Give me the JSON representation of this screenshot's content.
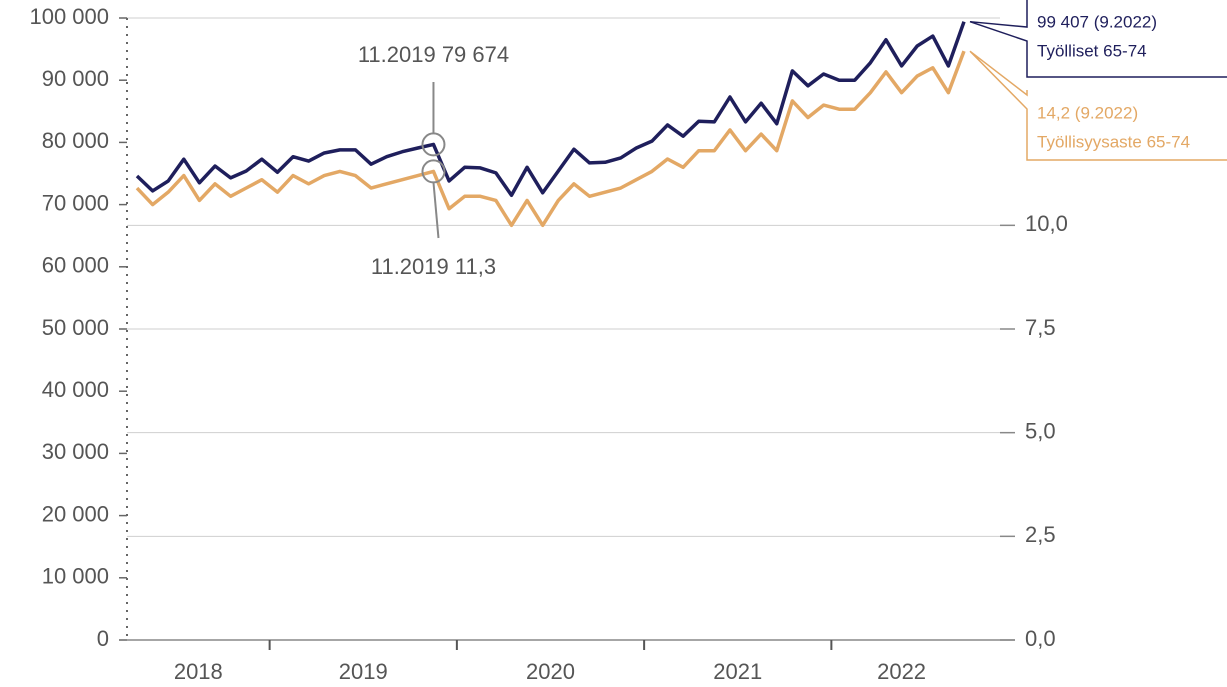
{
  "chart_data": {
    "type": "line",
    "x": [
      "4.2018",
      "5.2018",
      "6.2018",
      "7.2018",
      "8.2018",
      "9.2018",
      "10.2018",
      "11.2018",
      "12.2018",
      "1.2019",
      "2.2019",
      "3.2019",
      "4.2019",
      "5.2019",
      "6.2019",
      "7.2019",
      "8.2019",
      "9.2019",
      "10.2019",
      "11.2019",
      "12.2019",
      "1.2020",
      "2.2020",
      "3.2020",
      "4.2020",
      "5.2020",
      "6.2020",
      "7.2020",
      "8.2020",
      "9.2020",
      "10.2020",
      "11.2020",
      "12.2020",
      "1.2021",
      "2.2021",
      "3.2021",
      "4.2021",
      "5.2021",
      "6.2021",
      "7.2021",
      "8.2021",
      "9.2021",
      "10.2021",
      "11.2021",
      "12.2021",
      "1.2022",
      "2.2022",
      "3.2022",
      "4.2022",
      "5.2022",
      "6.2022",
      "7.2022",
      "8.2022",
      "9.2022"
    ],
    "years": [
      "2018",
      "2019",
      "2020",
      "2021",
      "2022"
    ],
    "series": [
      {
        "name": "Työlliset 65-74",
        "color": "#1f1f5c",
        "axis": "y",
        "end_label": "99 407 (9.2022)",
        "annotation": {
          "text": "11.2019 79 674",
          "x": "11.2019"
        },
        "values": [
          74600,
          72200,
          73800,
          77300,
          73500,
          76200,
          74300,
          75400,
          77300,
          75200,
          77700,
          77000,
          78300,
          78800,
          78800,
          76500,
          77700,
          78500,
          79100,
          79674,
          73800,
          76000,
          75900,
          75100,
          71500,
          76000,
          71900,
          75400,
          78900,
          76700,
          76800,
          77500,
          79100,
          80200,
          82800,
          81000,
          83400,
          83300,
          87300,
          83300,
          86300,
          83000,
          91500,
          89100,
          91000,
          90000,
          90000,
          92800,
          96500,
          92300,
          95500,
          97100,
          92300,
          99407
        ]
      },
      {
        "name": "Työllisyysaste 65-74",
        "color": "#e3a865",
        "axis": "y2",
        "end_label": "14,2 (9.2022)",
        "annotation": {
          "text": "11.2019 11,3",
          "x": "11.2019"
        },
        "values": [
          10.9,
          10.5,
          10.8,
          11.2,
          10.6,
          11.0,
          10.7,
          10.9,
          11.1,
          10.8,
          11.2,
          11.0,
          11.2,
          11.3,
          11.2,
          10.9,
          11.0,
          11.1,
          11.2,
          11.3,
          10.4,
          10.7,
          10.7,
          10.6,
          10.0,
          10.6,
          10.0,
          10.6,
          11.0,
          10.7,
          10.8,
          10.9,
          11.1,
          11.3,
          11.6,
          11.4,
          11.8,
          11.8,
          12.3,
          11.8,
          12.2,
          11.8,
          13.0,
          12.6,
          12.9,
          12.8,
          12.8,
          13.2,
          13.7,
          13.2,
          13.6,
          13.8,
          13.2,
          14.2
        ]
      }
    ],
    "ylim": [
      0,
      100000
    ],
    "yticks": [
      0,
      {
        "value": 10000,
        "label": "10 000"
      },
      {
        "value": 20000,
        "label": "20 000"
      },
      {
        "value": 30000,
        "label": "30 000"
      },
      {
        "value": 40000,
        "label": "40 000"
      },
      {
        "value": 50000,
        "label": "50 000"
      },
      {
        "value": 60000,
        "label": "60 000"
      },
      {
        "value": 70000,
        "label": "70 000"
      },
      {
        "value": 80000,
        "label": "80 000"
      },
      {
        "value": 90000,
        "label": "90 000"
      },
      {
        "value": 100000,
        "label": "100 000"
      }
    ],
    "y2lim": [
      0,
      15
    ],
    "y2ticks": [
      {
        "value": 0,
        "label": "0,0"
      },
      {
        "value": 2.5,
        "label": "2,5"
      },
      {
        "value": 5,
        "label": "5,0"
      },
      {
        "value": 7.5,
        "label": "7,5"
      },
      {
        "value": 10,
        "label": "10,0"
      }
    ],
    "grid": true
  }
}
